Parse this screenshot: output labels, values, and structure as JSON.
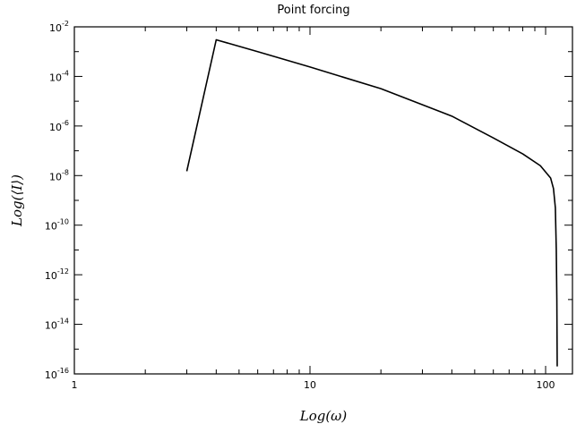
{
  "chart_data": {
    "type": "line",
    "title": "Point forcing",
    "xlabel": "Log(ω)",
    "ylabel": "Log(⟨I⟩)",
    "x_scale": "log",
    "y_scale": "log",
    "xlim": [
      1,
      130
    ],
    "ylim": [
      1e-16,
      0.01
    ],
    "x_ticks": [
      {
        "value": 1,
        "label": "1"
      },
      {
        "value": 10,
        "label": "10"
      },
      {
        "value": 100,
        "label": "100"
      }
    ],
    "y_ticks": [
      {
        "value": 0.01,
        "base": "10",
        "exp": "-2"
      },
      {
        "value": 0.0001,
        "base": "10",
        "exp": "-4"
      },
      {
        "value": 1e-06,
        "base": "10",
        "exp": "-6"
      },
      {
        "value": 1e-08,
        "base": "10",
        "exp": "-8"
      },
      {
        "value": 1e-10,
        "base": "10",
        "exp": "-10"
      },
      {
        "value": 1e-12,
        "base": "10",
        "exp": "-12"
      },
      {
        "value": 1e-14,
        "base": "10",
        "exp": "-14"
      },
      {
        "value": 1e-16,
        "base": "10",
        "exp": "-16"
      }
    ],
    "grid": false,
    "series": [
      {
        "color": "#000000",
        "points": [
          [
            3,
            1.5e-08
          ],
          [
            4,
            0.003
          ],
          [
            6,
            0.001
          ],
          [
            10,
            0.00024
          ],
          [
            20,
            3.2e-05
          ],
          [
            40,
            2.5e-06
          ],
          [
            60,
            3.3e-07
          ],
          [
            80,
            7.5e-08
          ],
          [
            95,
            2.5e-08
          ],
          [
            105,
            8e-09
          ],
          [
            108,
            3e-09
          ],
          [
            110,
            5e-10
          ],
          [
            111,
            1e-11
          ],
          [
            111.6,
            1e-13
          ],
          [
            112,
            2e-16
          ]
        ]
      }
    ]
  }
}
